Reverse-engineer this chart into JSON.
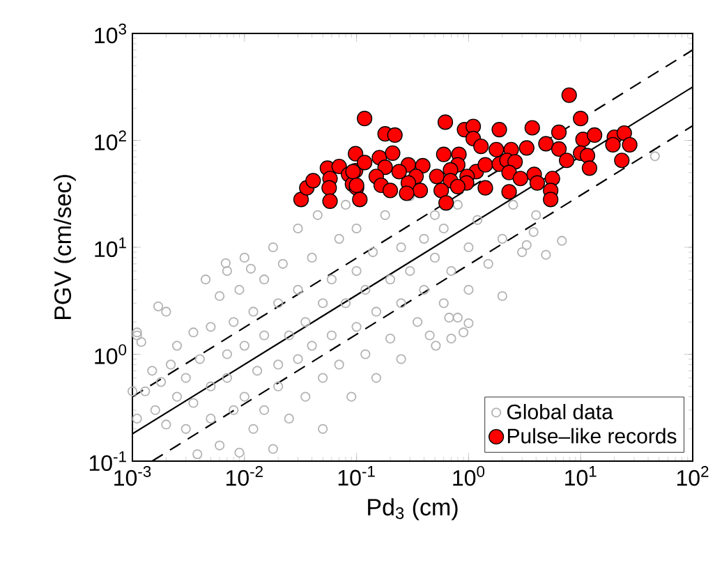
{
  "chart_data": {
    "type": "scatter",
    "xlabel": "Pd$_{3}$ (cm)",
    "ylabel": "PGV (cm/sec)",
    "log": "xy",
    "grid": false,
    "legend": "bottom right",
    "xlim": [
      0.001,
      100
    ],
    "ylim": [
      0.1,
      1000
    ],
    "xticks": [
      {
        "value": 0.001,
        "label": "10$^{-3}$"
      },
      {
        "value": 0.01,
        "label": "10$^{-2}$"
      },
      {
        "value": 0.1,
        "label": "10$^{-1}$"
      },
      {
        "value": 1,
        "label": "10$^{0}$"
      },
      {
        "value": 10,
        "label": "10$^{1}$"
      },
      {
        "value": 100,
        "label": "10$^{2}$"
      }
    ],
    "yticks": [
      {
        "value": 0.1,
        "label": "10$^{-1}$"
      },
      {
        "value": 1,
        "label": "10$^{0}$"
      },
      {
        "value": 10,
        "label": "10$^{1}$"
      },
      {
        "value": 100,
        "label": "10$^{2}$"
      },
      {
        "value": 1000,
        "label": "10$^{3}$"
      }
    ],
    "series": [
      {
        "name": "Global data",
        "type": "scatter",
        "marker": "circle",
        "color": "#b3b3b3",
        "x": [
          0.001,
          0.0011,
          0.0012,
          0.0011,
          0.0013,
          0.0015,
          0.0016,
          0.0018,
          0.002,
          0.002,
          0.0022,
          0.0025,
          0.0025,
          0.003,
          0.003,
          0.0035,
          0.0035,
          0.0038,
          0.004,
          0.0045,
          0.005,
          0.005,
          0.005,
          0.006,
          0.006,
          0.007,
          0.007,
          0.007,
          0.008,
          0.008,
          0.009,
          0.009,
          0.01,
          0.01,
          0.01,
          0.012,
          0.012,
          0.013,
          0.015,
          0.015,
          0.015,
          0.018,
          0.018,
          0.02,
          0.02,
          0.02,
          0.022,
          0.025,
          0.025,
          0.03,
          0.03,
          0.03,
          0.035,
          0.035,
          0.04,
          0.04,
          0.045,
          0.05,
          0.05,
          0.05,
          0.06,
          0.06,
          0.07,
          0.07,
          0.08,
          0.08,
          0.09,
          0.1,
          0.1,
          0.1,
          0.12,
          0.12,
          0.14,
          0.15,
          0.15,
          0.18,
          0.2,
          0.2,
          0.25,
          0.25,
          0.25,
          0.3,
          0.3,
          0.35,
          0.4,
          0.4,
          0.45,
          0.5,
          0.5,
          0.6,
          0.6,
          0.7,
          0.8,
          0.8,
          1,
          1,
          1.2,
          1.5,
          1.5,
          2,
          2,
          2.5,
          3,
          0.7,
          4,
          0.9,
          1,
          0.51,
          0.67,
          6.8,
          4.9,
          3.3,
          3.8,
          46,
          0.0068,
          0.0114,
          0.0017,
          0.0011
        ],
        "values": [
          0.45,
          1.5,
          1.3,
          0.25,
          0.45,
          0.7,
          0.3,
          0.55,
          0.22,
          2.5,
          0.8,
          0.4,
          1.2,
          0.6,
          0.2,
          1.6,
          0.35,
          0.116,
          0.9,
          5,
          1.8,
          0.5,
          0.25,
          3.5,
          0.14,
          1,
          0.6,
          6,
          0.3,
          2,
          0.12,
          4,
          1.2,
          0.4,
          8,
          0.2,
          2.5,
          0.7,
          5,
          1.5,
          0.3,
          10,
          0.13,
          3,
          0.8,
          0.5,
          7,
          1.5,
          0.25,
          4,
          15,
          0.9,
          2,
          0.4,
          8,
          1.2,
          20,
          3,
          0.6,
          0.2,
          5,
          1.5,
          12,
          0.8,
          3,
          25,
          0.4,
          6,
          1.8,
          15,
          1,
          4,
          9,
          2.5,
          0.6,
          20,
          5,
          1.4,
          10,
          3,
          0.9,
          6,
          30,
          2,
          12,
          4,
          1.5,
          8,
          20,
          3,
          15,
          6,
          2.2,
          25,
          10,
          4,
          18,
          7,
          35,
          3.5,
          12,
          25,
          9,
          1.4,
          20,
          1.6,
          1.95,
          1.2,
          2.2,
          11.5,
          8.5,
          10.5,
          13.9,
          71,
          7.1,
          6.3,
          2.8,
          1.6
        ]
      },
      {
        "name": "Pulse–like records",
        "type": "scatter",
        "marker": "circle",
        "color": "#ff0000",
        "x": [
          0.032,
          0.036,
          0.041,
          0.055,
          0.058,
          0.057,
          0.058,
          0.07,
          0.085,
          0.098,
          0.098,
          0.118,
          0.092,
          0.1,
          0.18,
          0.22,
          0.118,
          0.16,
          0.21,
          0.18,
          0.29,
          0.39,
          0.093,
          0.15,
          0.24,
          0.34,
          0.1,
          0.166,
          0.29,
          0.37,
          0.107,
          0.2,
          0.28,
          0.62,
          0.92,
          1.1,
          1.1,
          1.29,
          1.88,
          3.7,
          7.9,
          10,
          6.4,
          10.5,
          13.3,
          20,
          24.5,
          27.4,
          19.4,
          23.3,
          4.9,
          6.4,
          7.5,
          10,
          11.5,
          12,
          3.3,
          2.4,
          1.77,
          0.6,
          0.82,
          0.8,
          0.69,
          1.17,
          1.41,
          1.88,
          2.2,
          2.6,
          2.3,
          2.9,
          3.85,
          4.1,
          5.6,
          5.4,
          5.4,
          0.52,
          0.69,
          0.97,
          0.96,
          1.41,
          0.57,
          0.8,
          0.63,
          2.3
        ],
        "values": [
          28,
          36,
          42,
          55,
          44,
          36,
          27,
          57,
          48,
          52,
          75,
          160,
          39,
          36,
          115,
          112,
          62,
          69,
          76,
          56,
          59,
          58,
          51,
          46,
          51,
          46,
          38,
          38,
          40,
          34,
          28,
          34,
          32,
          148,
          126,
          135,
          104,
          88,
          126,
          131,
          265,
          160,
          119,
          102,
          112,
          107,
          117,
          91,
          91,
          65,
          93,
          83,
          65,
          76,
          72,
          55,
          85,
          82,
          82,
          74,
          74,
          59,
          53,
          51,
          59,
          60,
          65,
          63,
          50,
          44,
          48,
          40,
          44,
          34,
          28,
          46,
          42,
          46,
          40,
          36,
          34,
          37,
          26,
          33
        ]
      },
      {
        "type": "line",
        "line_style": "solid",
        "color": "#000000",
        "x": [
          0.001,
          100
        ],
        "values": [
          0.18,
          316
        ]
      },
      {
        "type": "line",
        "line_style": "dashed",
        "color": "#000000",
        "x": [
          0.001,
          100
        ],
        "values": [
          0.4,
          700
        ]
      },
      {
        "type": "line",
        "line_style": "dashed",
        "color": "#000000",
        "x": [
          0.0015,
          100
        ],
        "values": [
          0.1,
          137
        ]
      }
    ]
  }
}
